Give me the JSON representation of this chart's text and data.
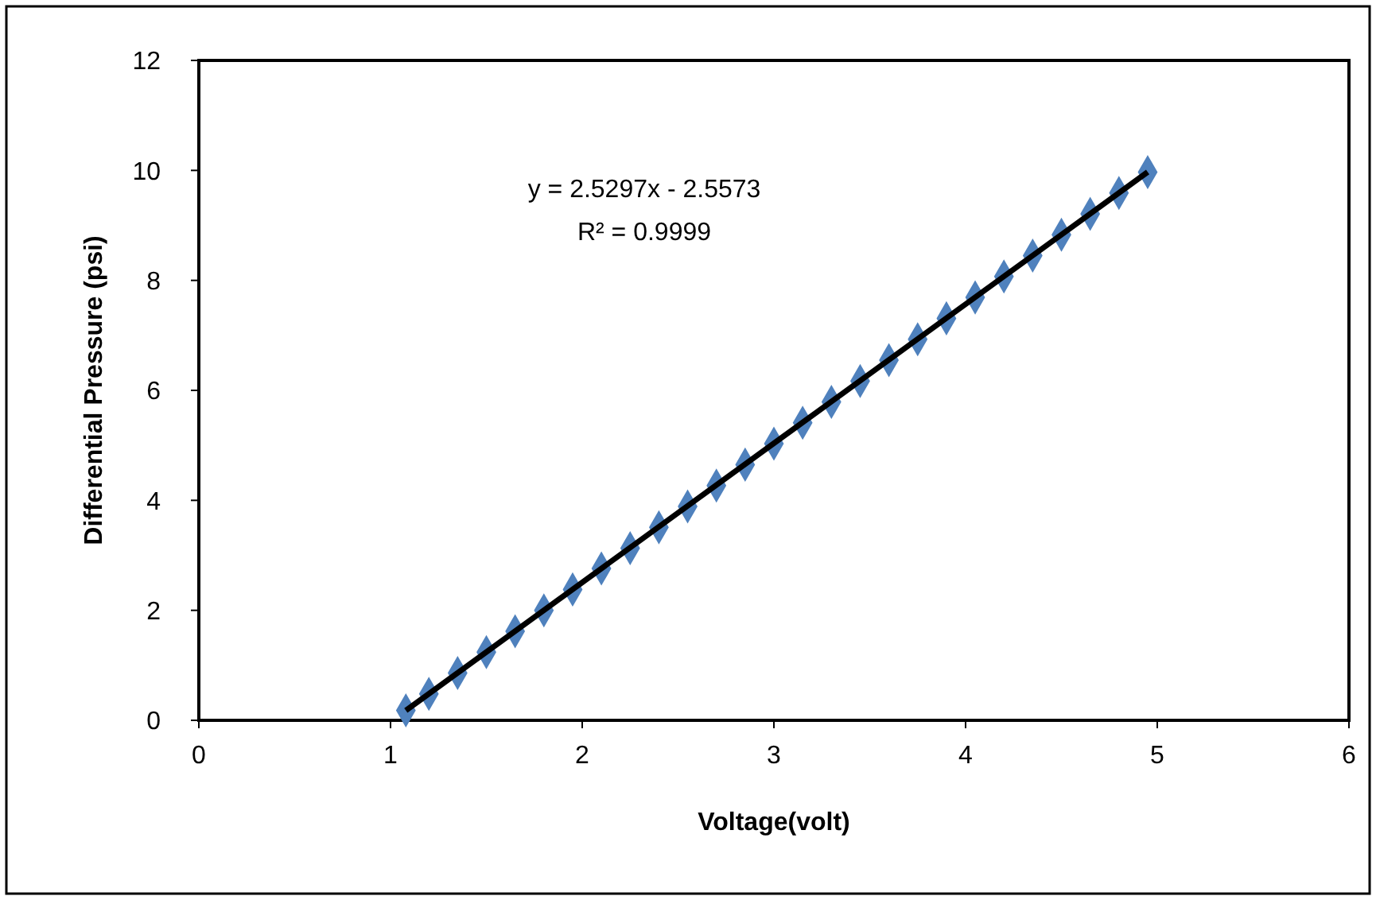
{
  "chart_data": {
    "type": "scatter",
    "xlabel": "Voltage(volt)",
    "ylabel": "Differential Pressure (psi)",
    "annotations": [
      "y = 2.5297x - 2.5573",
      "R² = 0.9999"
    ],
    "xlim": [
      0,
      6
    ],
    "xticks": [
      0,
      1,
      2,
      3,
      4,
      5,
      6
    ],
    "ylim": [
      0,
      12
    ],
    "yticks": [
      0,
      2,
      4,
      6,
      8,
      10,
      12
    ],
    "grid": false,
    "series": [
      {
        "color": "#4f81bd",
        "marker": "diamond",
        "x": [
          1.08,
          1.2,
          1.35,
          1.5,
          1.65,
          1.8,
          1.95,
          2.1,
          2.25,
          2.4,
          2.55,
          2.7,
          2.85,
          3.0,
          3.15,
          3.3,
          3.45,
          3.6,
          3.75,
          3.9,
          4.05,
          4.2,
          4.35,
          4.5,
          4.65,
          4.8,
          4.95
        ],
        "values": [
          0.18,
          0.48,
          0.86,
          1.24,
          1.62,
          2.0,
          2.38,
          2.76,
          3.13,
          3.51,
          3.89,
          4.27,
          4.65,
          5.03,
          5.41,
          5.79,
          6.17,
          6.55,
          6.93,
          7.31,
          7.69,
          8.07,
          8.45,
          8.83,
          9.21,
          9.59,
          9.97
        ]
      },
      {
        "type": "line",
        "color": "#000000",
        "marker": "none",
        "line_style": "solid",
        "x": [
          1.08,
          4.95
        ],
        "values": [
          0.18,
          9.97
        ]
      }
    ]
  }
}
